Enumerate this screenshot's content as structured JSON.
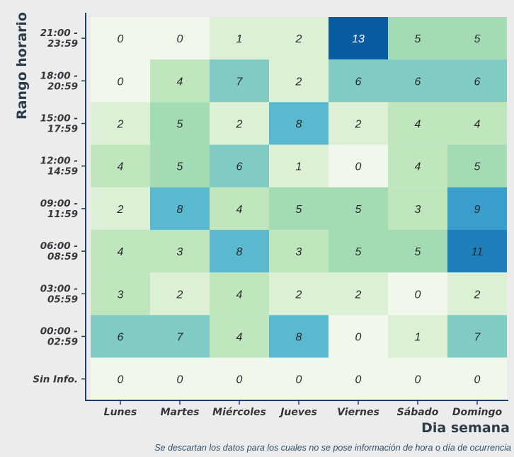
{
  "chart_data": {
    "type": "heatmap",
    "xlabel": "Dia semana",
    "ylabel": "Rango horario",
    "caption": "Se descartan los datos para los cuales no se pose información de hora o día de ocurrencia",
    "x_categories": [
      "Lunes",
      "Martes",
      "Miércoles",
      "Jueves",
      "Viernes",
      "Sábado",
      "Domingo"
    ],
    "y_categories": [
      [
        "21:00 -",
        "23:59"
      ],
      [
        "18:00 -",
        "20:59"
      ],
      [
        "15:00 -",
        "17:59"
      ],
      [
        "12:00 -",
        "14:59"
      ],
      [
        "09:00 -",
        "11:59"
      ],
      [
        "06:00 -",
        "08:59"
      ],
      [
        "03:00 -",
        "05:59"
      ],
      [
        "00:00 -",
        "02:59"
      ],
      [
        "Sin Info."
      ]
    ],
    "values": [
      [
        0,
        0,
        1,
        2,
        13,
        5,
        5
      ],
      [
        0,
        4,
        7,
        2,
        6,
        6,
        6
      ],
      [
        2,
        5,
        2,
        8,
        2,
        4,
        4
      ],
      [
        4,
        5,
        6,
        1,
        0,
        4,
        5
      ],
      [
        2,
        8,
        4,
        5,
        5,
        3,
        9
      ],
      [
        4,
        3,
        8,
        3,
        5,
        5,
        11
      ],
      [
        3,
        2,
        4,
        2,
        2,
        0,
        2
      ],
      [
        6,
        7,
        4,
        8,
        0,
        1,
        7
      ],
      [
        0,
        0,
        0,
        0,
        0,
        0,
        0
      ]
    ],
    "color_scale": [
      "#f0f8eb",
      "#dbf0d5",
      "#c0e6be",
      "#a3dbb4",
      "#80cbc4",
      "#5ab8cf",
      "#3a9ecc",
      "#1f7fbb",
      "#0a5ca2"
    ],
    "value_max": 13,
    "grid": false,
    "legend": "none"
  }
}
